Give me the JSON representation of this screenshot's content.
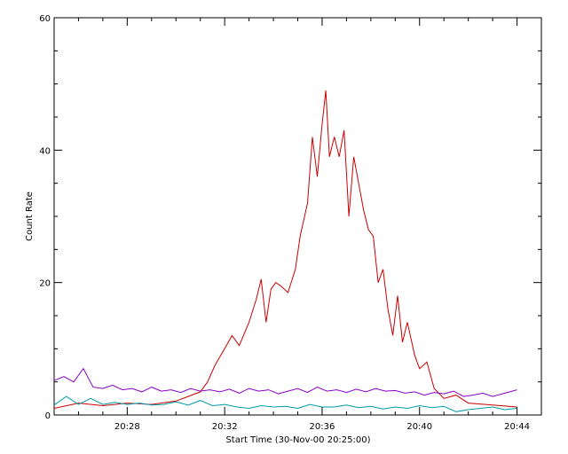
{
  "chart_data": {
    "type": "line",
    "xlabel": "Start Time (30-Nov-00 20:25:00)",
    "ylabel": "Count Rate",
    "x_unit": "minutes after 20:25:00",
    "xlim": [
      0,
      20
    ],
    "ylim": [
      0,
      60
    ],
    "x_ticks": [
      {
        "value": 3,
        "label": "20:28"
      },
      {
        "value": 7,
        "label": "20:32"
      },
      {
        "value": 11,
        "label": "20:36"
      },
      {
        "value": 15,
        "label": "20:40"
      },
      {
        "value": 19,
        "label": "20:44"
      }
    ],
    "y_ticks": [
      {
        "value": 0,
        "label": "0"
      },
      {
        "value": 20,
        "label": "20"
      },
      {
        "value": 40,
        "label": "40"
      },
      {
        "value": 60,
        "label": "60"
      }
    ],
    "grid": false,
    "series": [
      {
        "color": "#cc0000",
        "points": [
          [
            0,
            1.0
          ],
          [
            1,
            1.8
          ],
          [
            2,
            1.4
          ],
          [
            3,
            1.8
          ],
          [
            4,
            1.6
          ],
          [
            5,
            2.1
          ],
          [
            5.5,
            2.8
          ],
          [
            6,
            3.5
          ],
          [
            6.3,
            5.0
          ],
          [
            6.6,
            7.5
          ],
          [
            7,
            10.0
          ],
          [
            7.3,
            12.0
          ],
          [
            7.6,
            10.5
          ],
          [
            8,
            14.0
          ],
          [
            8.3,
            17.5
          ],
          [
            8.5,
            20.5
          ],
          [
            8.7,
            14.0
          ],
          [
            8.9,
            19.0
          ],
          [
            9.1,
            20.0
          ],
          [
            9.3,
            19.5
          ],
          [
            9.6,
            18.5
          ],
          [
            9.9,
            22.0
          ],
          [
            10.1,
            27.0
          ],
          [
            10.4,
            32.0
          ],
          [
            10.6,
            42.0
          ],
          [
            10.8,
            36.0
          ],
          [
            11,
            44.0
          ],
          [
            11.15,
            49.0
          ],
          [
            11.3,
            39.0
          ],
          [
            11.5,
            42.0
          ],
          [
            11.7,
            39.0
          ],
          [
            11.9,
            43.0
          ],
          [
            12.1,
            30.0
          ],
          [
            12.3,
            39.0
          ],
          [
            12.5,
            35.0
          ],
          [
            12.7,
            31.0
          ],
          [
            12.9,
            28.0
          ],
          [
            13.1,
            27.0
          ],
          [
            13.3,
            20.0
          ],
          [
            13.5,
            22.0
          ],
          [
            13.7,
            16.0
          ],
          [
            13.9,
            12.0
          ],
          [
            14.1,
            18.0
          ],
          [
            14.3,
            11.0
          ],
          [
            14.5,
            14.0
          ],
          [
            14.8,
            9.0
          ],
          [
            15,
            7.0
          ],
          [
            15.3,
            8.0
          ],
          [
            15.6,
            4.0
          ],
          [
            16,
            2.5
          ],
          [
            16.5,
            3.0
          ],
          [
            17,
            1.8
          ],
          [
            18,
            1.5
          ],
          [
            19,
            1.2
          ]
        ]
      },
      {
        "color": "#8a00c8",
        "points": [
          [
            0,
            5.2
          ],
          [
            0.4,
            5.8
          ],
          [
            0.8,
            5.0
          ],
          [
            1.2,
            7.0
          ],
          [
            1.6,
            4.2
          ],
          [
            2,
            4.0
          ],
          [
            2.4,
            4.5
          ],
          [
            2.8,
            3.8
          ],
          [
            3.2,
            4.0
          ],
          [
            3.6,
            3.5
          ],
          [
            4,
            4.2
          ],
          [
            4.4,
            3.6
          ],
          [
            4.8,
            3.8
          ],
          [
            5.2,
            3.4
          ],
          [
            5.6,
            4.0
          ],
          [
            6,
            3.6
          ],
          [
            6.4,
            3.8
          ],
          [
            6.8,
            3.5
          ],
          [
            7.2,
            3.9
          ],
          [
            7.6,
            3.3
          ],
          [
            8,
            4.0
          ],
          [
            8.4,
            3.6
          ],
          [
            8.8,
            3.8
          ],
          [
            9.2,
            3.2
          ],
          [
            9.6,
            3.6
          ],
          [
            10,
            4.0
          ],
          [
            10.4,
            3.4
          ],
          [
            10.8,
            4.2
          ],
          [
            11.2,
            3.6
          ],
          [
            11.6,
            3.8
          ],
          [
            12,
            3.4
          ],
          [
            12.4,
            3.9
          ],
          [
            12.8,
            3.5
          ],
          [
            13.2,
            4.0
          ],
          [
            13.6,
            3.6
          ],
          [
            14,
            3.7
          ],
          [
            14.4,
            3.3
          ],
          [
            14.8,
            3.5
          ],
          [
            15.2,
            3.0
          ],
          [
            15.6,
            3.4
          ],
          [
            16,
            3.2
          ],
          [
            16.4,
            3.6
          ],
          [
            16.8,
            2.8
          ],
          [
            17.2,
            3.0
          ],
          [
            17.6,
            3.3
          ],
          [
            18,
            2.8
          ],
          [
            18.4,
            3.2
          ],
          [
            18.8,
            3.6
          ],
          [
            19,
            3.8
          ]
        ]
      },
      {
        "color": "#009aa8",
        "points": [
          [
            0,
            1.5
          ],
          [
            0.5,
            2.8
          ],
          [
            1,
            1.6
          ],
          [
            1.5,
            2.5
          ],
          [
            2,
            1.6
          ],
          [
            2.5,
            1.9
          ],
          [
            3,
            1.6
          ],
          [
            3.5,
            1.8
          ],
          [
            4,
            1.5
          ],
          [
            4.5,
            1.6
          ],
          [
            5,
            2.0
          ],
          [
            5.5,
            1.5
          ],
          [
            6,
            2.2
          ],
          [
            6.5,
            1.4
          ],
          [
            7,
            1.6
          ],
          [
            7.5,
            1.2
          ],
          [
            8,
            1.0
          ],
          [
            8.5,
            1.4
          ],
          [
            9,
            1.2
          ],
          [
            9.5,
            1.3
          ],
          [
            10,
            1.0
          ],
          [
            10.5,
            1.6
          ],
          [
            11,
            1.2
          ],
          [
            11.5,
            1.2
          ],
          [
            12,
            1.5
          ],
          [
            12.5,
            1.1
          ],
          [
            13,
            1.3
          ],
          [
            13.5,
            0.9
          ],
          [
            14,
            1.2
          ],
          [
            14.5,
            1.0
          ],
          [
            15,
            1.4
          ],
          [
            15.5,
            1.1
          ],
          [
            16,
            1.3
          ],
          [
            16.5,
            0.5
          ],
          [
            17,
            0.8
          ],
          [
            17.5,
            1.0
          ],
          [
            18,
            1.2
          ],
          [
            18.5,
            0.8
          ],
          [
            19,
            1.0
          ]
        ]
      }
    ]
  }
}
